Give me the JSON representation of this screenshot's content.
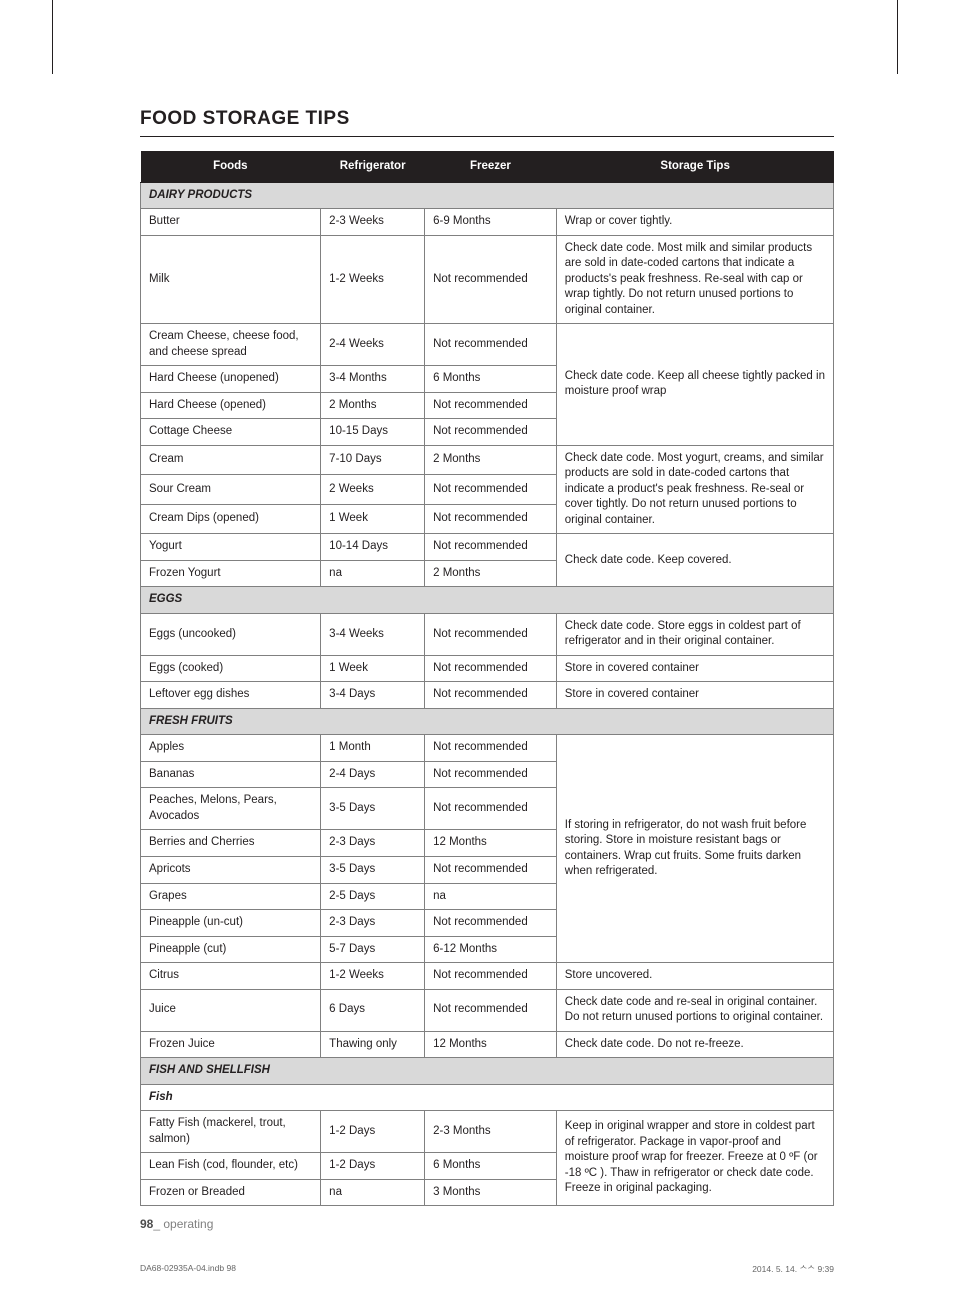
{
  "title": "FOOD STORAGE TIPS",
  "headers": {
    "foods": "Foods",
    "refrigerator": "Refrigerator",
    "freezer": "Freezer",
    "tips": "Storage Tips"
  },
  "sections": [
    {
      "name": "DAIRY PRODUCTS",
      "groups": [
        {
          "tip": "Wrap or cover tightly.",
          "rows": [
            {
              "food": "Butter",
              "r": "2-3 Weeks",
              "f": "6-9 Months"
            }
          ]
        },
        {
          "tip": "Check date code. Most milk and similar products are sold in date-coded cartons that indicate a products's peak freshness. Re-seal with cap or wrap tightly. Do not return unused portions to original container.",
          "rows": [
            {
              "food": "Milk",
              "r": "1-2 Weeks",
              "f": "Not recommended"
            }
          ]
        },
        {
          "tip": "Check date code. Keep all cheese tightly packed in moisture proof wrap",
          "rows": [
            {
              "food": "Cream Cheese, cheese food, and cheese spread",
              "r": "2-4 Weeks",
              "f": "Not recommended"
            },
            {
              "food": "Hard Cheese (unopened)",
              "r": "3-4 Months",
              "f": "6 Months"
            },
            {
              "food": "Hard Cheese (opened)",
              "r": "2 Months",
              "f": "Not recommended"
            },
            {
              "food": "Cottage Cheese",
              "r": "10-15 Days",
              "f": "Not recommended"
            }
          ]
        },
        {
          "tip": "Check date code. Most yogurt, creams, and similar products are sold in date-coded cartons that indicate a product's peak freshness. Re-seal or cover tightly. Do not return unused portions to original container.",
          "rows": [
            {
              "food": "Cream",
              "r": "7-10 Days",
              "f": "2 Months"
            },
            {
              "food": "Sour Cream",
              "r": "2 Weeks",
              "f": "Not recommended"
            },
            {
              "food": "Cream Dips (opened)",
              "r": "1 Week",
              "f": "Not recommended"
            }
          ]
        },
        {
          "tip": "Check date code. Keep covered.",
          "rows": [
            {
              "food": "Yogurt",
              "r": "10-14 Days",
              "f": "Not recommended"
            },
            {
              "food": "Frozen Yogurt",
              "r": "na",
              "f": "2 Months"
            }
          ]
        }
      ]
    },
    {
      "name": "EGGS",
      "groups": [
        {
          "tip": "Check date code. Store eggs in coldest part of refrigerator and in their original container.",
          "rows": [
            {
              "food": "Eggs (uncooked)",
              "r": "3-4 Weeks",
              "f": "Not recommended"
            }
          ]
        },
        {
          "tip": "Store in covered container",
          "rows": [
            {
              "food": "Eggs (cooked)",
              "r": "1 Week",
              "f": "Not recommended"
            }
          ]
        },
        {
          "tip": "Store in covered container",
          "rows": [
            {
              "food": "Leftover egg dishes",
              "r": "3-4 Days",
              "f": "Not recommended"
            }
          ]
        }
      ]
    },
    {
      "name": "FRESH FRUITS",
      "groups": [
        {
          "tip": "If storing in refrigerator, do not wash fruit before storing. Store in moisture resistant bags or containers. Wrap cut fruits. Some fruits darken when refrigerated.",
          "rows": [
            {
              "food": "Apples",
              "r": "1 Month",
              "f": "Not recommended"
            },
            {
              "food": "Bananas",
              "r": "2-4 Days",
              "f": "Not recommended"
            },
            {
              "food": "Peaches, Melons, Pears, Avocados",
              "r": "3-5 Days",
              "f": "Not recommended"
            },
            {
              "food": "Berries and Cherries",
              "r": "2-3 Days",
              "f": "12 Months"
            },
            {
              "food": "Apricots",
              "r": "3-5 Days",
              "f": "Not recommended"
            },
            {
              "food": "Grapes",
              "r": "2-5 Days",
              "f": "na"
            },
            {
              "food": "Pineapple (un-cut)",
              "r": "2-3 Days",
              "f": "Not recommended"
            },
            {
              "food": "Pineapple (cut)",
              "r": "5-7 Days",
              "f": "6-12 Months"
            }
          ]
        },
        {
          "tip": "Store uncovered.",
          "rows": [
            {
              "food": "Citrus",
              "r": "1-2 Weeks",
              "f": "Not recommended"
            }
          ]
        },
        {
          "tip": "Check date code and re-seal in original container. Do not return unused portions to original container.",
          "rows": [
            {
              "food": "Juice",
              "r": "6 Days",
              "f": "Not recommended"
            }
          ]
        },
        {
          "tip": "Check date code. Do not re-freeze.",
          "rows": [
            {
              "food": "Frozen Juice",
              "r": "Thawing only",
              "f": "12 Months"
            }
          ]
        }
      ]
    },
    {
      "name": "FISH AND SHELLFISH",
      "subs": [
        {
          "name": "Fish",
          "groups": [
            {
              "tip": "Keep in original wrapper and store in coldest part of refrigerator. Package in vapor-proof and moisture proof wrap for freezer. Freeze at 0 ºF (or -18 ºC ). Thaw in refrigerator or check date code. Freeze in original packaging.",
              "rows": [
                {
                  "food": "Fatty Fish (mackerel, trout, salmon)",
                  "r": "1-2 Days",
                  "f": "2-3 Months"
                },
                {
                  "food": "Lean Fish (cod, flounder, etc)",
                  "r": "1-2 Days",
                  "f": "6 Months"
                },
                {
                  "food": "Frozen or Breaded",
                  "r": "na",
                  "f": "3 Months"
                }
              ]
            }
          ]
        }
      ]
    }
  ],
  "footer": {
    "page": "98",
    "section": "_ operating"
  },
  "meta": {
    "file": "DA68-02935A-04.indb   98",
    "stamp": "2014. 5. 14.   ᄉᄉ 9:39"
  }
}
